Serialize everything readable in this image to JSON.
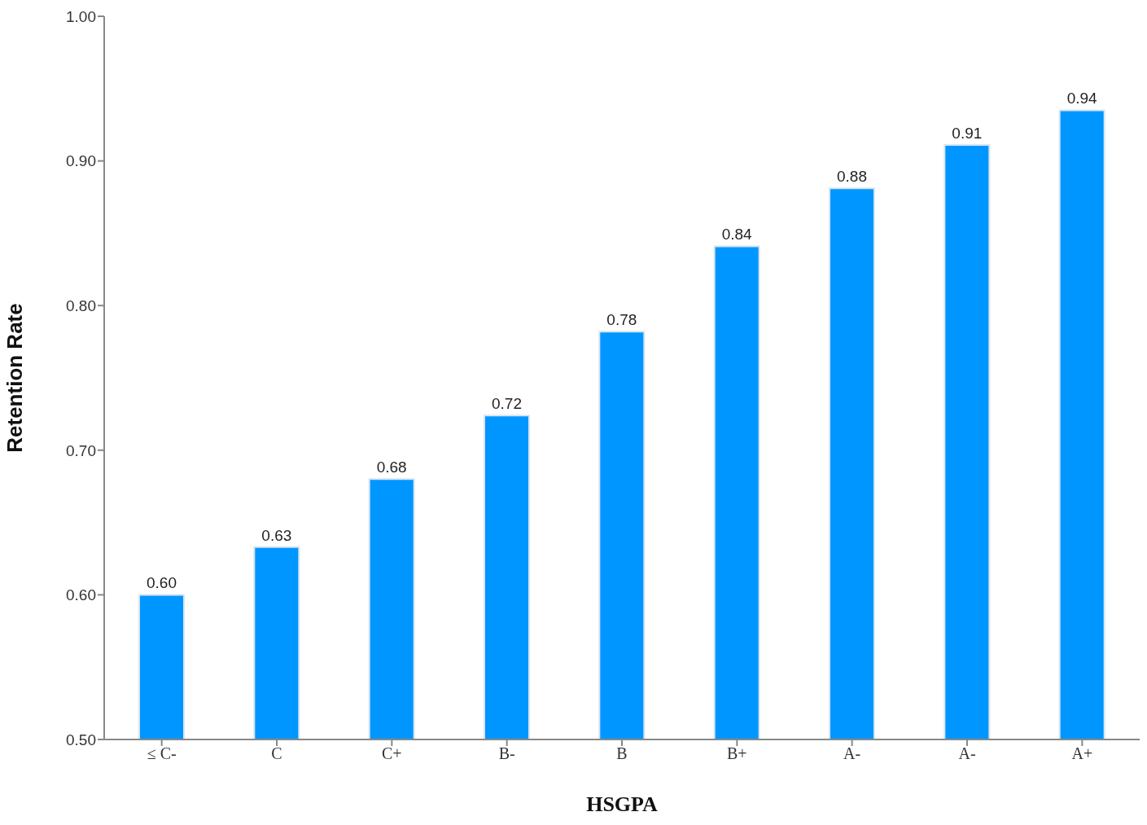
{
  "chart_data": {
    "type": "bar",
    "xlabel": "HSGPA",
    "ylabel": "Retention Rate",
    "categories": [
      "≤ C-",
      "C",
      "C+",
      "B-",
      "B",
      "B+",
      "A-",
      "A-",
      "A+"
    ],
    "values": [
      0.6,
      0.633,
      0.68,
      0.724,
      0.782,
      0.841,
      0.881,
      0.911,
      0.935
    ],
    "value_labels": [
      "0.60",
      "0.63",
      "0.68",
      "0.72",
      "0.78",
      "0.84",
      "0.88",
      "0.91",
      "0.94"
    ],
    "color": "#0096ff",
    "ylim": [
      0.5,
      1.0
    ],
    "yticks": [
      {
        "value": 0.5,
        "label": "0.50"
      },
      {
        "value": 0.6,
        "label": "0.60"
      },
      {
        "value": 0.7,
        "label": "0.70"
      },
      {
        "value": 0.8,
        "label": "0.80"
      },
      {
        "value": 0.9,
        "label": "0.90"
      },
      {
        "value": 1.0,
        "label": "1.00"
      }
    ]
  }
}
